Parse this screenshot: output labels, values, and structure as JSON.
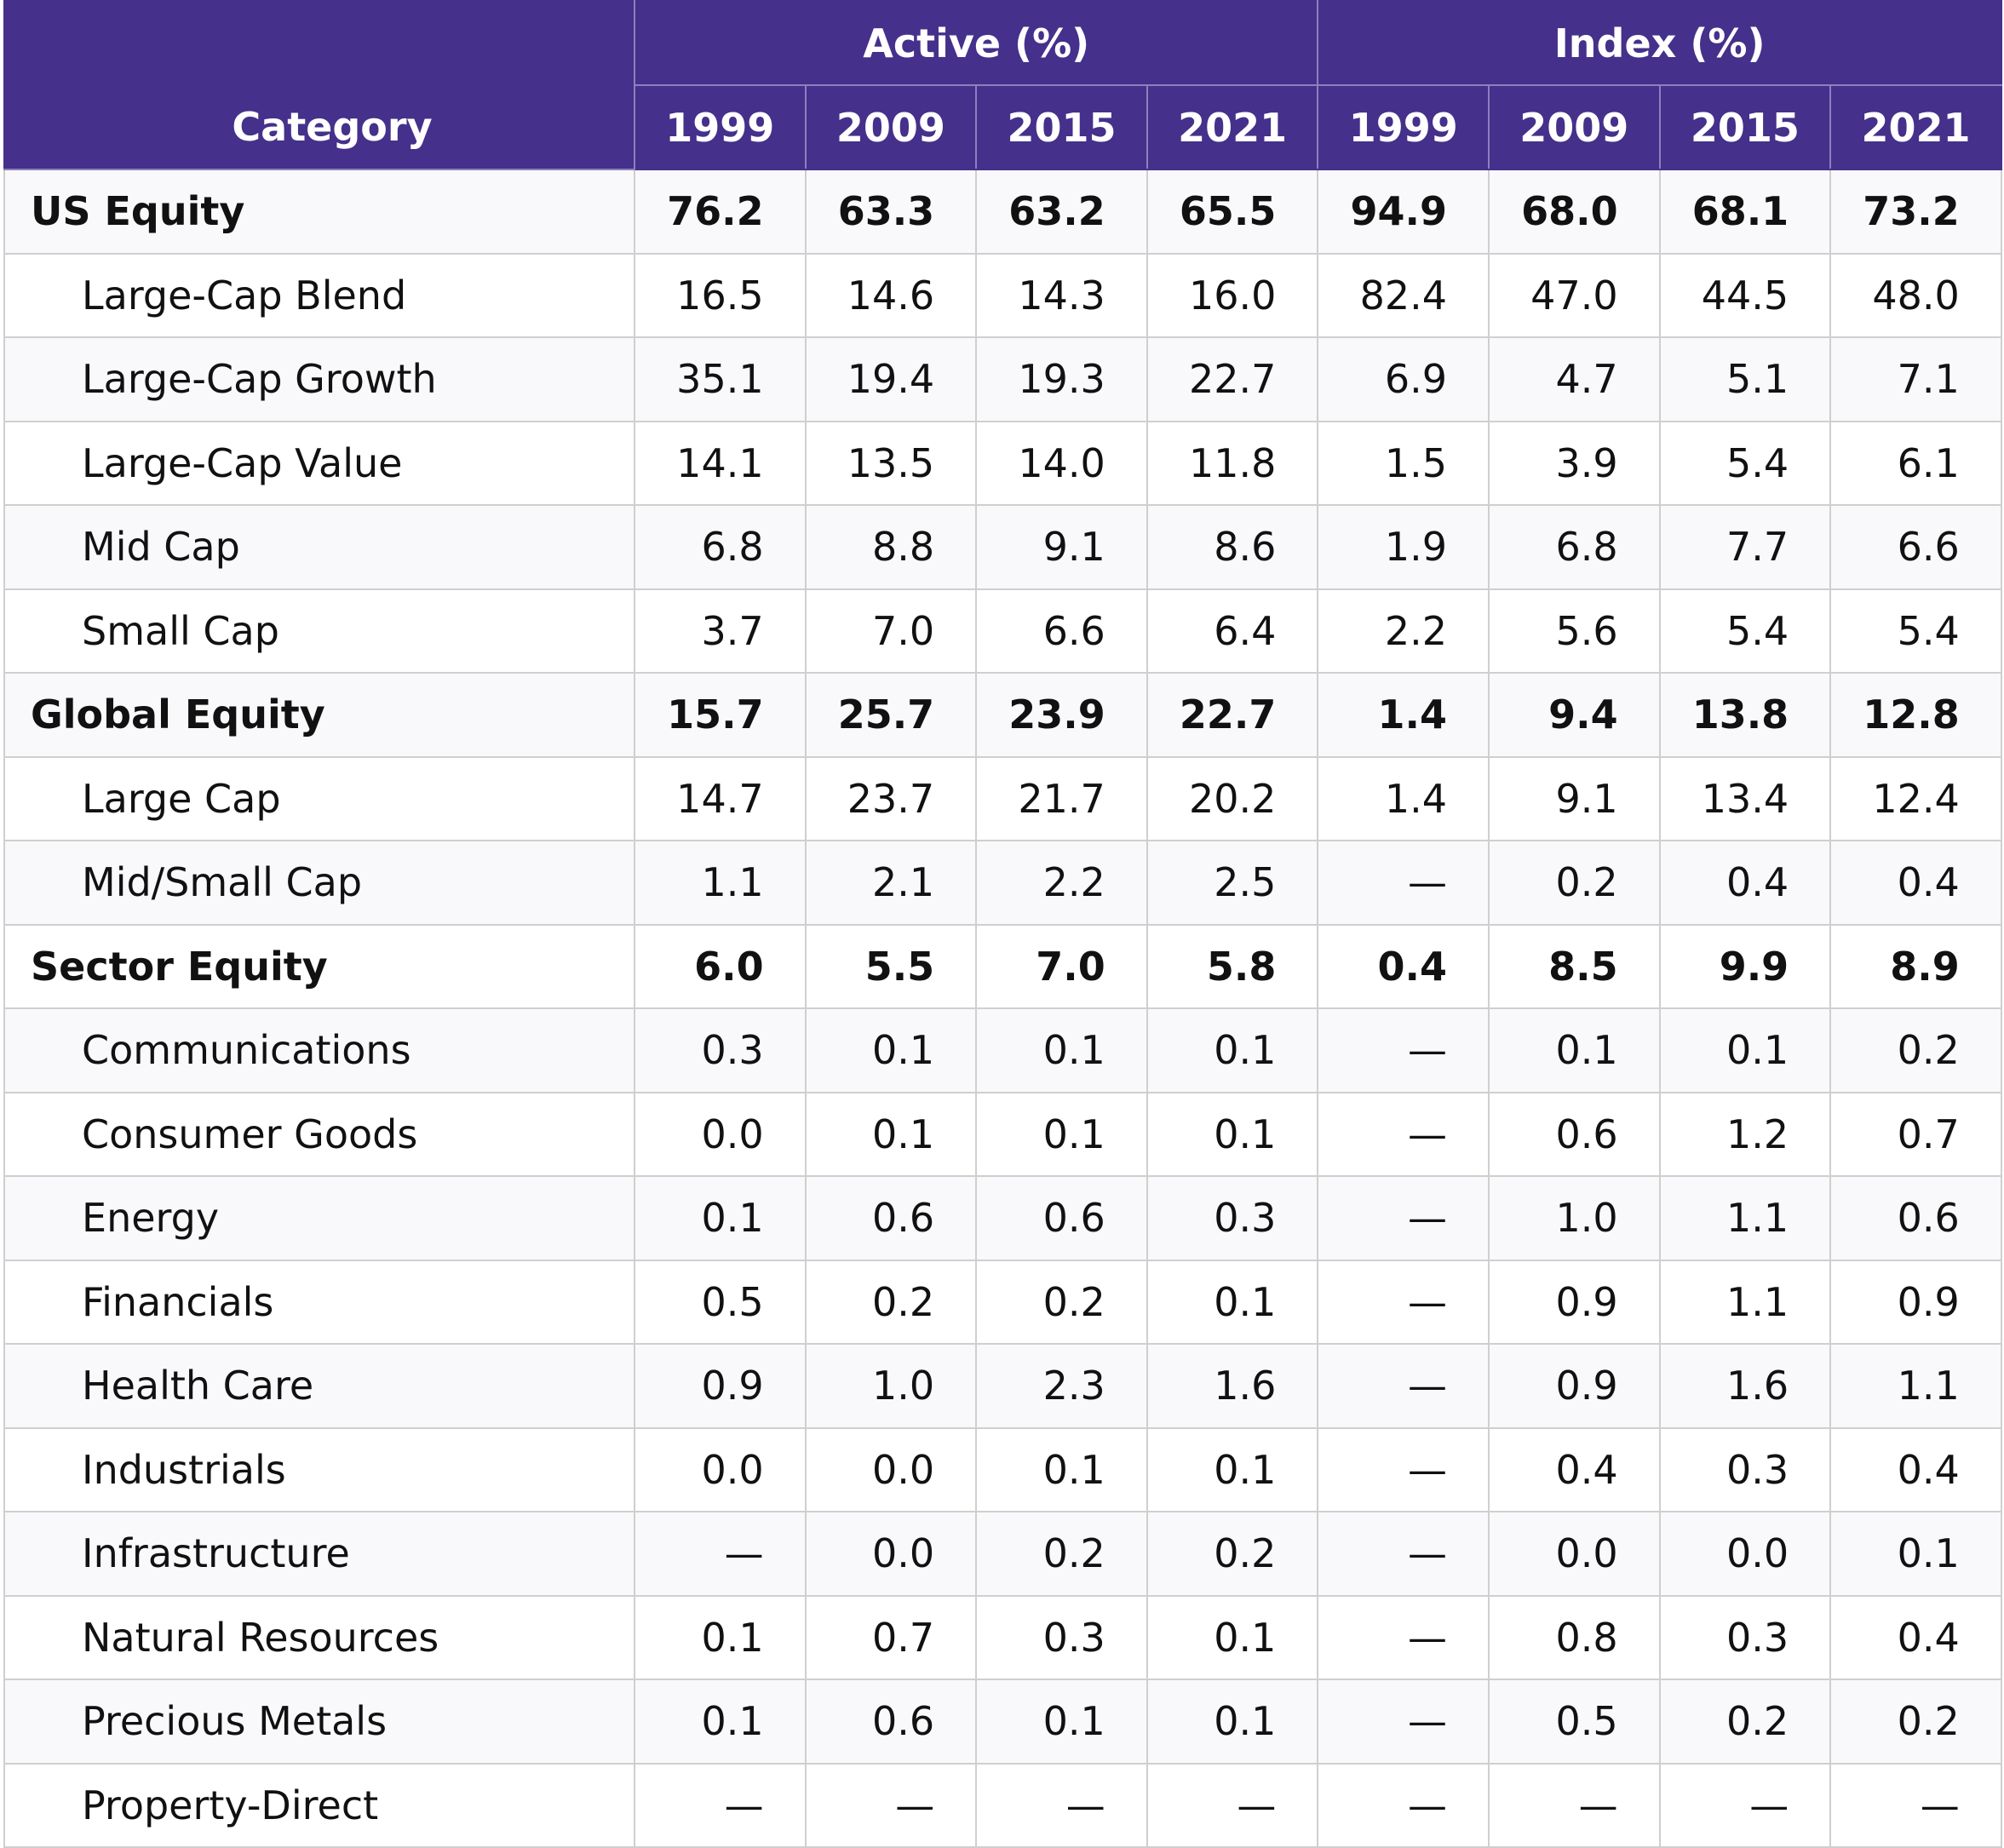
{
  "table": {
    "category_header": "Category",
    "groups": [
      {
        "label": "Active (%)",
        "years": [
          "1999",
          "2009",
          "2015",
          "2021"
        ]
      },
      {
        "label": "Index (%)",
        "years": [
          "1999",
          "2009",
          "2015",
          "2021"
        ]
      }
    ],
    "rows": [
      {
        "category": "US Equity",
        "level": "group",
        "values": [
          "76.2",
          "63.3",
          "63.2",
          "65.5",
          "94.9",
          "68.0",
          "68.1",
          "73.2"
        ]
      },
      {
        "category": "Large-Cap Blend",
        "level": "sub",
        "values": [
          "16.5",
          "14.6",
          "14.3",
          "16.0",
          "82.4",
          "47.0",
          "44.5",
          "48.0"
        ]
      },
      {
        "category": "Large-Cap Growth",
        "level": "sub",
        "values": [
          "35.1",
          "19.4",
          "19.3",
          "22.7",
          "6.9",
          "4.7",
          "5.1",
          "7.1"
        ]
      },
      {
        "category": "Large-Cap Value",
        "level": "sub",
        "values": [
          "14.1",
          "13.5",
          "14.0",
          "11.8",
          "1.5",
          "3.9",
          "5.4",
          "6.1"
        ]
      },
      {
        "category": "Mid Cap",
        "level": "sub",
        "values": [
          "6.8",
          "8.8",
          "9.1",
          "8.6",
          "1.9",
          "6.8",
          "7.7",
          "6.6"
        ]
      },
      {
        "category": "Small Cap",
        "level": "sub",
        "values": [
          "3.7",
          "7.0",
          "6.6",
          "6.4",
          "2.2",
          "5.6",
          "5.4",
          "5.4"
        ]
      },
      {
        "category": "Global Equity",
        "level": "group",
        "values": [
          "15.7",
          "25.7",
          "23.9",
          "22.7",
          "1.4",
          "9.4",
          "13.8",
          "12.8"
        ]
      },
      {
        "category": "Large Cap",
        "level": "sub",
        "values": [
          "14.7",
          "23.7",
          "21.7",
          "20.2",
          "1.4",
          "9.1",
          "13.4",
          "12.4"
        ]
      },
      {
        "category": "Mid/Small Cap",
        "level": "sub",
        "values": [
          "1.1",
          "2.1",
          "2.2",
          "2.5",
          "—",
          "0.2",
          "0.4",
          "0.4"
        ]
      },
      {
        "category": "Sector Equity",
        "level": "group",
        "values": [
          "6.0",
          "5.5",
          "7.0",
          "5.8",
          "0.4",
          "8.5",
          "9.9",
          "8.9"
        ]
      },
      {
        "category": "Communications",
        "level": "sub",
        "values": [
          "0.3",
          "0.1",
          "0.1",
          "0.1",
          "—",
          "0.1",
          "0.1",
          "0.2"
        ]
      },
      {
        "category": "Consumer Goods",
        "level": "sub",
        "values": [
          "0.0",
          "0.1",
          "0.1",
          "0.1",
          "—",
          "0.6",
          "1.2",
          "0.7"
        ]
      },
      {
        "category": "Energy",
        "level": "sub",
        "values": [
          "0.1",
          "0.6",
          "0.6",
          "0.3",
          "—",
          "1.0",
          "1.1",
          "0.6"
        ]
      },
      {
        "category": "Financials",
        "level": "sub",
        "values": [
          "0.5",
          "0.2",
          "0.2",
          "0.1",
          "—",
          "0.9",
          "1.1",
          "0.9"
        ]
      },
      {
        "category": "Health Care",
        "level": "sub",
        "values": [
          "0.9",
          "1.0",
          "2.3",
          "1.6",
          "—",
          "0.9",
          "1.6",
          "1.1"
        ]
      },
      {
        "category": "Industrials",
        "level": "sub",
        "values": [
          "0.0",
          "0.0",
          "0.1",
          "0.1",
          "—",
          "0.4",
          "0.3",
          "0.4"
        ]
      },
      {
        "category": "Infrastructure",
        "level": "sub",
        "values": [
          "—",
          "0.0",
          "0.2",
          "0.2",
          "—",
          "0.0",
          "0.0",
          "0.1"
        ]
      },
      {
        "category": "Natural Resources",
        "level": "sub",
        "values": [
          "0.1",
          "0.7",
          "0.3",
          "0.1",
          "—",
          "0.8",
          "0.3",
          "0.4"
        ]
      },
      {
        "category": "Precious Metals",
        "level": "sub",
        "values": [
          "0.1",
          "0.6",
          "0.1",
          "0.1",
          "—",
          "0.5",
          "0.2",
          "0.2"
        ]
      },
      {
        "category": "Property-Direct",
        "level": "sub",
        "values": [
          "—",
          "—",
          "—",
          "—",
          "—",
          "—",
          "—",
          "—"
        ]
      }
    ]
  },
  "colors": {
    "header_bg": "#45308b",
    "header_text": "#ffffff",
    "grid_line": "#cfcfcf"
  }
}
